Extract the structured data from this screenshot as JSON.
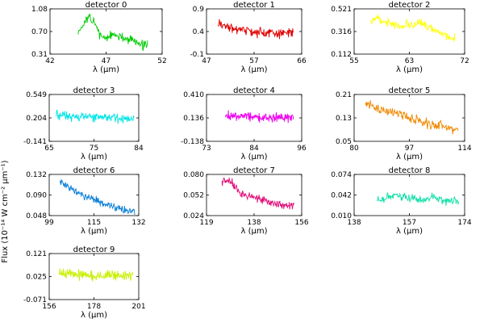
{
  "figure": {
    "ylabel": "Flux (10⁻¹⁴ W cm⁻² μm⁻¹)"
  },
  "chart_data": [
    {
      "type": "line",
      "title": "detector 0",
      "xlabel": "λ (μm)",
      "xlim": [
        42,
        52
      ],
      "xticks": [
        "42",
        "47",
        "52"
      ],
      "ylim": [
        0.31,
        1.08
      ],
      "yticks": [
        "0.31",
        "0.70",
        "1.08"
      ],
      "color": "#00cc00",
      "x_start": 44.5,
      "x_end": 50.7,
      "n": 130,
      "seed": 11,
      "values": [
        0.7,
        0.82,
        0.94,
        0.8,
        0.62,
        0.58,
        0.64,
        0.6,
        0.58,
        0.56,
        0.52,
        0.48,
        0.46
      ]
    },
    {
      "type": "line",
      "title": "detector 1",
      "xlabel": "λ (μm)",
      "xlim": [
        47,
        66
      ],
      "xticks": [
        "47",
        "57",
        "66"
      ],
      "ylim": [
        -0.1,
        0.9
      ],
      "yticks": [
        "-0.1",
        "0.4",
        "0.9"
      ],
      "color": "#e00000",
      "x_start": 49.3,
      "x_end": 64.3,
      "n": 160,
      "seed": 23,
      "values": [
        0.62,
        0.52,
        0.48,
        0.44,
        0.42,
        0.4,
        0.38,
        0.37,
        0.38,
        0.36,
        0.36,
        0.37,
        0.36
      ]
    },
    {
      "type": "line",
      "title": "detector 2",
      "xlabel": "λ (μm)",
      "xlim": [
        55,
        72
      ],
      "xticks": [
        "55",
        "63",
        "72"
      ],
      "ylim": [
        0.112,
        0.521
      ],
      "yticks": [
        "0.112",
        "0.316",
        "0.521"
      ],
      "color": "#ffff00",
      "x_start": 57.5,
      "x_end": 70.5,
      "n": 140,
      "seed": 37,
      "values": [
        0.4,
        0.45,
        0.4,
        0.38,
        0.37,
        0.37,
        0.38,
        0.4,
        0.37,
        0.33,
        0.3,
        0.27,
        0.25
      ]
    },
    {
      "type": "line",
      "title": "detector 3",
      "xlabel": "λ (μm)",
      "xlim": [
        65,
        84
      ],
      "xticks": [
        "65",
        "75",
        "84"
      ],
      "ylim": [
        -0.141,
        0.549
      ],
      "yticks": [
        "-0.141",
        "0.204",
        "0.549"
      ],
      "color": "#00e5e5",
      "x_start": 66.5,
      "x_end": 83.0,
      "n": 170,
      "seed": 41,
      "values": [
        0.24,
        0.24,
        0.23,
        0.23,
        0.22,
        0.22,
        0.22,
        0.21,
        0.21,
        0.21,
        0.2,
        0.2,
        0.2
      ]
    },
    {
      "type": "line",
      "title": "detector 4",
      "xlabel": "λ (μm)",
      "xlim": [
        73,
        96
      ],
      "xticks": [
        "73",
        "84",
        "96"
      ],
      "ylim": [
        -0.138,
        0.41
      ],
      "yticks": [
        "-0.138",
        "0.136",
        "0.410"
      ],
      "color": "#ee00ee",
      "x_start": 77.5,
      "x_end": 94.0,
      "n": 170,
      "seed": 53,
      "values": [
        0.17,
        0.16,
        0.16,
        0.15,
        0.15,
        0.15,
        0.14,
        0.14,
        0.14,
        0.14,
        0.14,
        0.14,
        0.14
      ]
    },
    {
      "type": "line",
      "title": "detector 5",
      "xlabel": "λ (μm)",
      "xlim": [
        80,
        114
      ],
      "xticks": [
        "80",
        "97",
        "114"
      ],
      "ylim": [
        0.05,
        0.21
      ],
      "yticks": [
        "0.05",
        "0.13",
        "0.21"
      ],
      "color": "#f08800",
      "x_start": 83.5,
      "x_end": 112.0,
      "n": 170,
      "seed": 67,
      "values": [
        0.175,
        0.17,
        0.16,
        0.15,
        0.145,
        0.14,
        0.13,
        0.12,
        0.11,
        0.105,
        0.1,
        0.095,
        0.09
      ]
    },
    {
      "type": "line",
      "title": "detector 6",
      "xlabel": "λ (μm)",
      "xlim": [
        99,
        132
      ],
      "xticks": [
        "99",
        "115",
        "132"
      ],
      "ylim": [
        0.048,
        0.132
      ],
      "yticks": [
        "0.048",
        "0.090",
        "0.132"
      ],
      "color": "#0a7fd8",
      "x_start": 103.0,
      "x_end": 130.5,
      "n": 170,
      "seed": 71,
      "values": [
        0.118,
        0.108,
        0.1,
        0.094,
        0.088,
        0.083,
        0.078,
        0.073,
        0.069,
        0.065,
        0.061,
        0.058,
        0.056
      ]
    },
    {
      "type": "line",
      "title": "detector 7",
      "xlabel": "λ (μm)",
      "xlim": [
        119,
        156
      ],
      "xticks": [
        "119",
        "138",
        "156"
      ],
      "ylim": [
        0.024,
        0.08
      ],
      "yticks": [
        "0.024",
        "0.052",
        "0.080"
      ],
      "color": "#e0107a",
      "x_start": 125.0,
      "x_end": 153.0,
      "n": 170,
      "seed": 83,
      "values": [
        0.07,
        0.072,
        0.066,
        0.054,
        0.051,
        0.05,
        0.048,
        0.045,
        0.042,
        0.04,
        0.038,
        0.037,
        0.038
      ]
    },
    {
      "type": "line",
      "title": "detector 8",
      "xlabel": "λ (μm)",
      "xlim": [
        138,
        174
      ],
      "xticks": [
        "138",
        "157",
        "174"
      ],
      "ylim": [
        0.01,
        0.074
      ],
      "yticks": [
        "0.010",
        "0.042",
        "0.074"
      ],
      "color": "#10e0a8",
      "x_start": 145.5,
      "x_end": 172.0,
      "n": 170,
      "seed": 97,
      "values": [
        0.035,
        0.037,
        0.04,
        0.042,
        0.038,
        0.036,
        0.035,
        0.034,
        0.04,
        0.036,
        0.033,
        0.034,
        0.033
      ]
    },
    {
      "type": "line",
      "title": "detector 9",
      "xlabel": "λ (μm)",
      "xlim": [
        156,
        201
      ],
      "xticks": [
        "156",
        "178",
        "201"
      ],
      "ylim": [
        -0.071,
        0.121
      ],
      "yticks": [
        "-0.071",
        "0.025",
        "0.121"
      ],
      "color": "#c8f000",
      "x_start": 161.0,
      "x_end": 198.0,
      "n": 190,
      "seed": 103,
      "values": [
        0.035,
        0.04,
        0.038,
        0.033,
        0.03,
        0.03,
        0.029,
        0.03,
        0.031,
        0.03,
        0.03,
        0.029,
        0.03
      ]
    }
  ]
}
